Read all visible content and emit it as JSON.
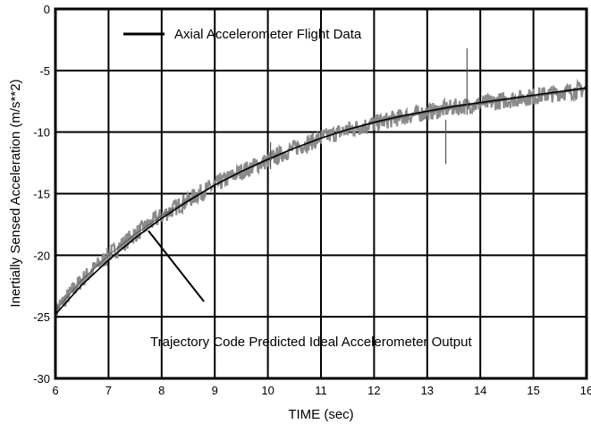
{
  "chart_data": {
    "type": "line",
    "xlabel": "TIME (sec)",
    "ylabel": "Inertially Sensed Acceleration (m/s**2)",
    "xlim": [
      6,
      16
    ],
    "ylim": [
      -30,
      0
    ],
    "xticks": [
      "6",
      "7",
      "8",
      "9",
      "10",
      "11",
      "12",
      "13",
      "14",
      "15",
      "16"
    ],
    "yticks": [
      "0",
      "-5",
      "-10",
      "-15",
      "-20",
      "-25",
      "-30"
    ],
    "grid": true,
    "series": [
      {
        "name": "Axial Accelerometer Flight Data",
        "x": [
          6.0,
          6.5,
          7.0,
          7.5,
          8.0,
          8.5,
          9.0,
          9.5,
          10.0,
          10.5,
          11.0,
          11.5,
          12.0,
          12.5,
          13.0,
          13.5,
          14.0,
          14.5,
          15.0,
          15.5,
          16.0
        ],
        "y": [
          -24.5,
          -22.0,
          -20.0,
          -18.3,
          -16.8,
          -15.5,
          -14.3,
          -13.2,
          -12.3,
          -11.3,
          -10.5,
          -9.8,
          -9.3,
          -8.8,
          -8.4,
          -8.0,
          -7.7,
          -7.4,
          -7.1,
          -6.8,
          -6.5
        ]
      },
      {
        "name": "Trajectory Code Predicted Ideal Accelerometer Output",
        "x": [
          6.0,
          6.5,
          7.0,
          7.5,
          8.0,
          8.5,
          9.0,
          9.5,
          10.0,
          10.5,
          11.0,
          11.5,
          12.0,
          12.5,
          13.0,
          13.5,
          14.0,
          14.5,
          15.0,
          15.5,
          16.0
        ],
        "y": [
          -24.8,
          -22.4,
          -20.4,
          -18.6,
          -17.0,
          -15.6,
          -14.3,
          -13.2,
          -12.2,
          -11.3,
          -10.5,
          -9.8,
          -9.2,
          -8.7,
          -8.3,
          -7.9,
          -7.6,
          -7.3,
          -7.0,
          -6.7,
          -6.4
        ]
      }
    ],
    "annotations": [
      {
        "text": "Axial Accelerometer Flight Data",
        "series": 0
      },
      {
        "text": "Trajectory Code Predicted Ideal Accelerometer Output",
        "series": 1
      }
    ]
  },
  "colors": {
    "flight_data": "#8a8a8a",
    "trajectory": "#000000",
    "grid": "#000000"
  }
}
